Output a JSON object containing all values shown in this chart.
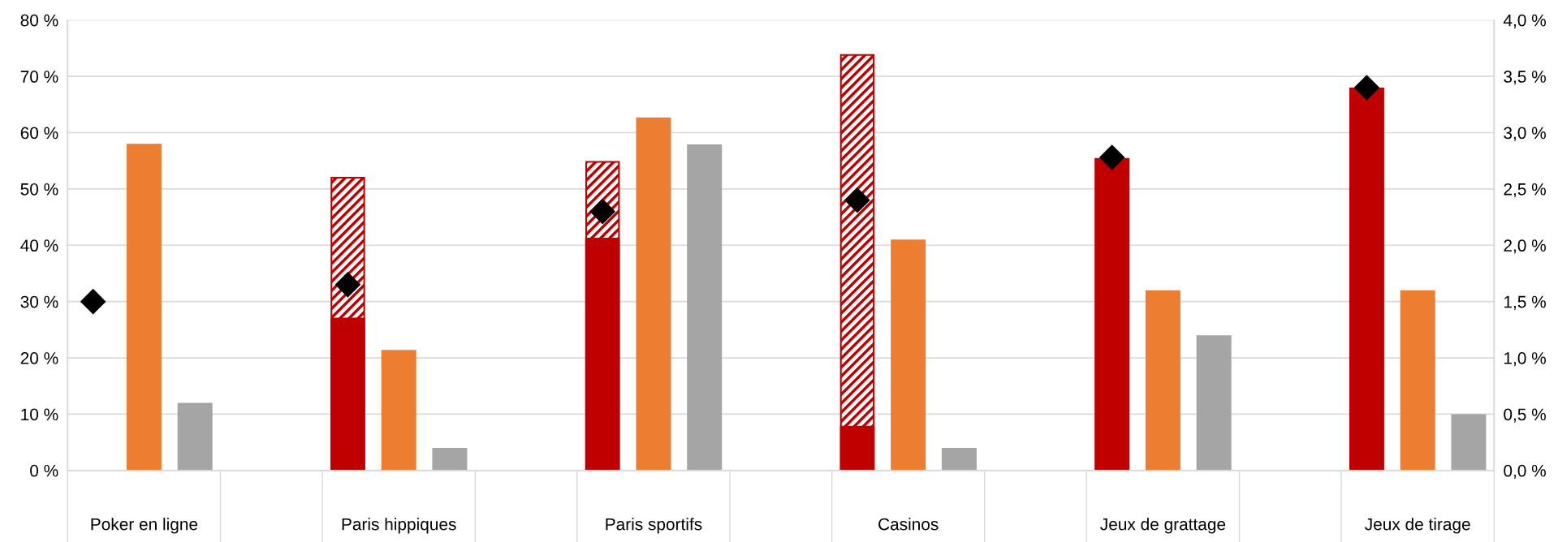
{
  "chart_data": {
    "type": "bar",
    "categories": [
      "Poker en ligne",
      "Paris hippiques",
      "Paris sportifs",
      "Casinos",
      "Jeux de grattage",
      "Jeux de tirage"
    ],
    "series": [
      {
        "color": "#c00000",
        "values": [
          null,
          27,
          41.2,
          7.8,
          55.5,
          68
        ]
      },
      {
        "color": "#c00000",
        "base": [
          null,
          27,
          41.2,
          7.8,
          null,
          null
        ],
        "values": [
          null,
          25,
          13.6,
          66,
          null,
          null
        ]
      },
      {
        "color": "#ed7d31",
        "values": [
          58,
          21.4,
          62.7,
          41,
          32,
          32
        ]
      },
      {
        "color": "#a5a5a5",
        "values": [
          12,
          4,
          57.9,
          4,
          24,
          10
        ]
      },
      {
        "type": "scatter",
        "axis": "y2",
        "marker": "diamond",
        "color": "#000000",
        "values": [
          1.5,
          1.65,
          2.3,
          2.4,
          2.78,
          3.4
        ]
      }
    ],
    "ylim": [
      0,
      80
    ],
    "yticks": [
      {
        "value": 0,
        "label": "0 %"
      },
      {
        "value": 10,
        "label": "10 %"
      },
      {
        "value": 20,
        "label": "20 %"
      },
      {
        "value": 30,
        "label": "30 %"
      },
      {
        "value": 40,
        "label": "40 %"
      },
      {
        "value": 50,
        "label": "50 %"
      },
      {
        "value": 60,
        "label": "60 %"
      },
      {
        "value": 70,
        "label": "70 %"
      },
      {
        "value": 80,
        "label": "80 %"
      }
    ],
    "y2lim": [
      0,
      4
    ],
    "y2ticks": [
      {
        "value": 0,
        "label": "0,0 %"
      },
      {
        "value": 0.5,
        "label": "0,5 %"
      },
      {
        "value": 1,
        "label": "1,0 %"
      },
      {
        "value": 1.5,
        "label": "1,5 %"
      },
      {
        "value": 2,
        "label": "2,0 %"
      },
      {
        "value": 2.5,
        "label": "2,5 %"
      },
      {
        "value": 3,
        "label": "3,0 %"
      },
      {
        "value": 3.5,
        "label": "3,5 %"
      },
      {
        "value": 4,
        "label": "4,0 %"
      }
    ],
    "grid": "y"
  }
}
